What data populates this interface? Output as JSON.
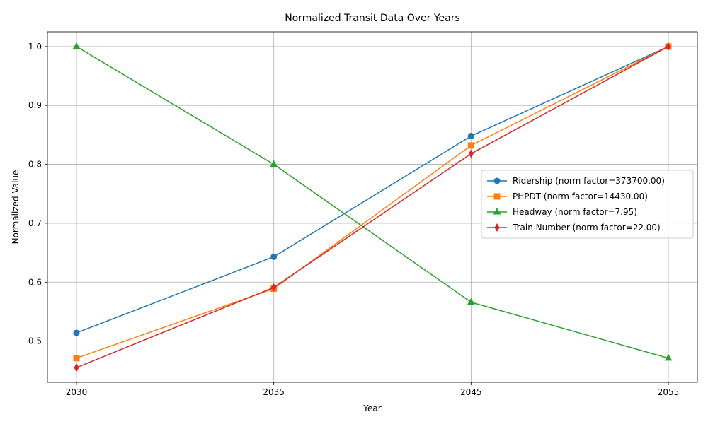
{
  "chart_data": {
    "type": "line",
    "title": "Normalized Transit Data Over Years",
    "xlabel": "Year",
    "ylabel": "Normalized Value",
    "categories": [
      "2030",
      "2035",
      "2045",
      "2055"
    ],
    "ylim": [
      0.43,
      1.025
    ],
    "yticks": [
      "0.5",
      "0.6",
      "0.7",
      "0.8",
      "0.9",
      "1.0"
    ],
    "grid": true,
    "legend_position": "center-right",
    "series": [
      {
        "name": "Ridership (norm factor=373700.00)",
        "color": "#1f77b4",
        "marker": "circle",
        "values": [
          0.514,
          0.643,
          0.848,
          1.0
        ]
      },
      {
        "name": "PHPDT (norm factor=14430.00)",
        "color": "#ff7f0e",
        "marker": "square",
        "values": [
          0.471,
          0.589,
          0.832,
          1.0
        ]
      },
      {
        "name": "Headway (norm factor=7.95)",
        "color": "#2ca02c",
        "marker": "triangle",
        "values": [
          1.0,
          0.8,
          0.566,
          0.471
        ]
      },
      {
        "name": "Train Number (norm factor=22.00)",
        "color": "#d62728",
        "marker": "diamond",
        "values": [
          0.455,
          0.591,
          0.818,
          1.0
        ]
      }
    ]
  }
}
